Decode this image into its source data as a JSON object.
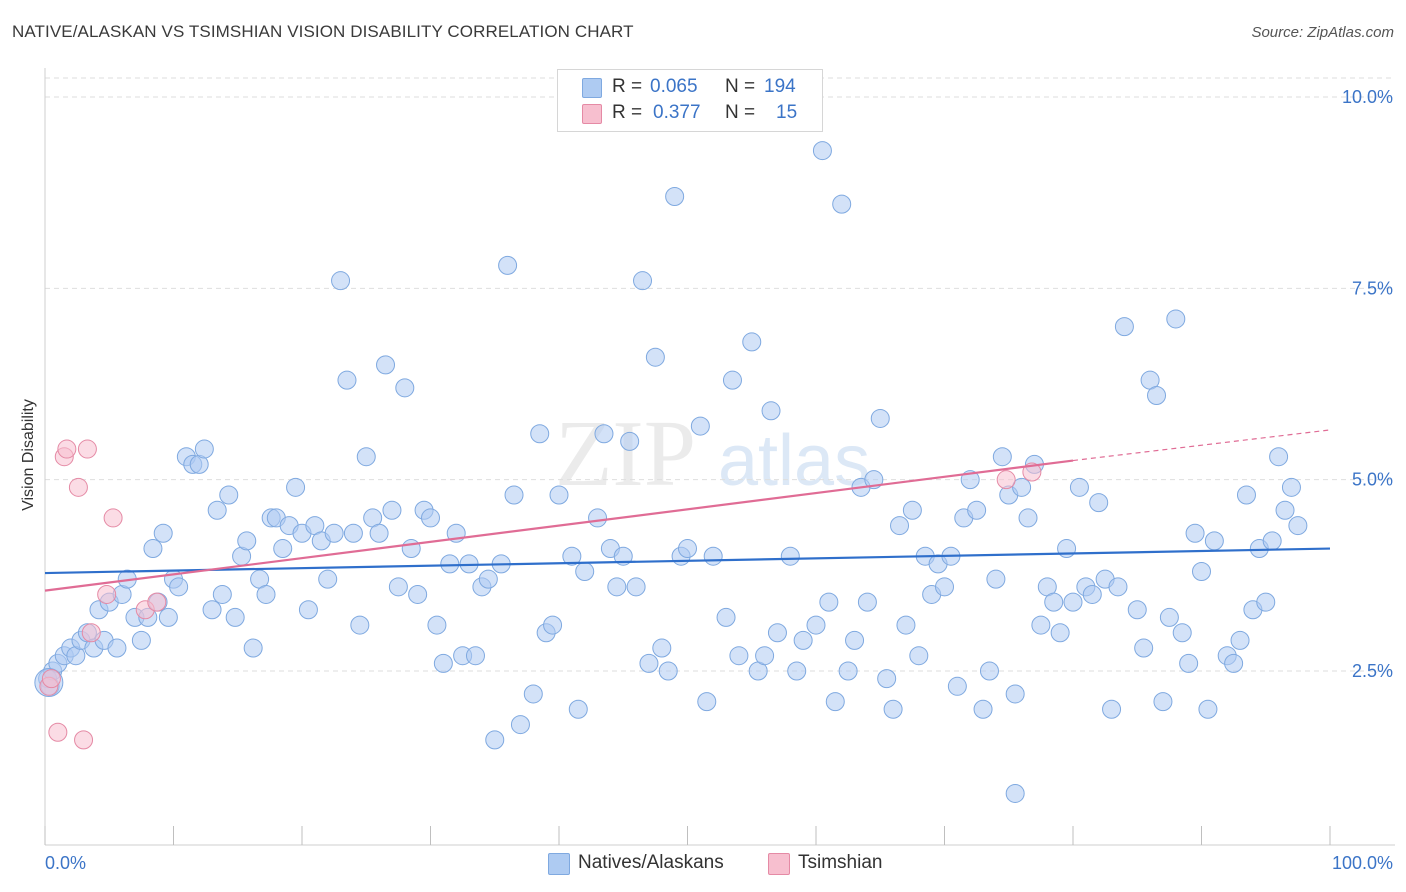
{
  "title": "NATIVE/ALASKAN VS TSIMSHIAN VISION DISABILITY CORRELATION CHART",
  "source": "Source: ZipAtlas.com",
  "watermark": {
    "zip": "ZIP",
    "atlas": "atlas"
  },
  "legend": {
    "r_label": "R =",
    "n_label": "N =",
    "rows": [
      {
        "r": "0.065",
        "n": "194",
        "color": "#aecbf2",
        "border": "#7fa9e0"
      },
      {
        "r": "0.377",
        "n": "15",
        "color": "#f7bfcf",
        "border": "#e58aa5"
      }
    ]
  },
  "chart_data": {
    "type": "scatter",
    "title": "NATIVE/ALASKAN VS TSIMSHIAN VISION DISABILITY CORRELATION CHART",
    "xlabel": "",
    "ylabel": "Vision Disability",
    "xlim": [
      0,
      100
    ],
    "ylim": [
      0,
      10.5
    ],
    "x_tick_labels": [
      "0.0%",
      "100.0%"
    ],
    "y_ticks": [
      2.5,
      5.0,
      7.5,
      10.0
    ],
    "y_tick_labels": [
      "2.5%",
      "5.0%",
      "7.5%",
      "10.0%"
    ],
    "grid": true,
    "legend_position": "top-center",
    "series": [
      {
        "name": "Natives/Alaskans",
        "color": "#aecbf2",
        "edge": "#7fa9e0",
        "trend_color": "#2f6fcb",
        "trend": [
          [
            0,
            3.78
          ],
          [
            100,
            4.1
          ]
        ],
        "points": [
          [
            0.2,
            2.4
          ],
          [
            0.4,
            2.3
          ],
          [
            0.6,
            2.5
          ],
          [
            1.0,
            2.6
          ],
          [
            1.5,
            2.7
          ],
          [
            2.0,
            2.8
          ],
          [
            2.4,
            2.7
          ],
          [
            2.8,
            2.9
          ],
          [
            3.3,
            3.0
          ],
          [
            3.8,
            2.8
          ],
          [
            4.2,
            3.3
          ],
          [
            4.6,
            2.9
          ],
          [
            5.0,
            3.4
          ],
          [
            5.6,
            2.8
          ],
          [
            6.0,
            3.5
          ],
          [
            6.4,
            3.7
          ],
          [
            7.0,
            3.2
          ],
          [
            7.5,
            2.9
          ],
          [
            8.0,
            3.2
          ],
          [
            8.4,
            4.1
          ],
          [
            8.8,
            3.4
          ],
          [
            9.2,
            4.3
          ],
          [
            9.6,
            3.2
          ],
          [
            10.0,
            3.7
          ],
          [
            10.4,
            3.6
          ],
          [
            11.0,
            5.3
          ],
          [
            11.5,
            5.2
          ],
          [
            12.0,
            5.2
          ],
          [
            12.4,
            5.4
          ],
          [
            13.0,
            3.3
          ],
          [
            13.4,
            4.6
          ],
          [
            13.8,
            3.5
          ],
          [
            14.3,
            4.8
          ],
          [
            14.8,
            3.2
          ],
          [
            15.3,
            4.0
          ],
          [
            15.7,
            4.2
          ],
          [
            16.2,
            2.8
          ],
          [
            16.7,
            3.7
          ],
          [
            17.2,
            3.5
          ],
          [
            17.6,
            4.5
          ],
          [
            18.0,
            4.5
          ],
          [
            18.5,
            4.1
          ],
          [
            19.0,
            4.4
          ],
          [
            19.5,
            4.9
          ],
          [
            20.0,
            4.3
          ],
          [
            20.5,
            3.3
          ],
          [
            21.0,
            4.4
          ],
          [
            21.5,
            4.2
          ],
          [
            22.0,
            3.7
          ],
          [
            22.5,
            4.3
          ],
          [
            23.0,
            7.6
          ],
          [
            23.5,
            6.3
          ],
          [
            24.0,
            4.3
          ],
          [
            24.5,
            3.1
          ],
          [
            25.0,
            5.3
          ],
          [
            25.5,
            4.5
          ],
          [
            26.0,
            4.3
          ],
          [
            26.5,
            6.5
          ],
          [
            27.0,
            4.6
          ],
          [
            27.5,
            3.6
          ],
          [
            28.0,
            6.2
          ],
          [
            28.5,
            4.1
          ],
          [
            29.0,
            3.5
          ],
          [
            29.5,
            4.6
          ],
          [
            30.0,
            4.5
          ],
          [
            30.5,
            3.1
          ],
          [
            31.0,
            2.6
          ],
          [
            31.5,
            3.9
          ],
          [
            32.0,
            4.3
          ],
          [
            32.5,
            2.7
          ],
          [
            33.0,
            3.9
          ],
          [
            33.5,
            2.7
          ],
          [
            34.0,
            3.6
          ],
          [
            34.5,
            3.7
          ],
          [
            35.0,
            1.6
          ],
          [
            35.5,
            3.9
          ],
          [
            36.0,
            7.8
          ],
          [
            36.5,
            4.8
          ],
          [
            37.0,
            1.8
          ],
          [
            38.0,
            2.2
          ],
          [
            38.5,
            5.6
          ],
          [
            39.0,
            3.0
          ],
          [
            39.5,
            3.1
          ],
          [
            40.0,
            4.8
          ],
          [
            41.0,
            4.0
          ],
          [
            41.5,
            2.0
          ],
          [
            42.0,
            3.8
          ],
          [
            43.0,
            4.5
          ],
          [
            43.5,
            5.6
          ],
          [
            44.0,
            4.1
          ],
          [
            44.5,
            3.6
          ],
          [
            45.0,
            4.0
          ],
          [
            45.5,
            5.5
          ],
          [
            46.0,
            3.6
          ],
          [
            46.5,
            7.6
          ],
          [
            47.0,
            2.6
          ],
          [
            47.5,
            6.6
          ],
          [
            48.0,
            2.8
          ],
          [
            48.5,
            2.5
          ],
          [
            49.0,
            8.7
          ],
          [
            49.5,
            4.0
          ],
          [
            50.0,
            4.1
          ],
          [
            51.0,
            5.7
          ],
          [
            51.5,
            2.1
          ],
          [
            52.0,
            4.0
          ],
          [
            53.0,
            3.2
          ],
          [
            53.5,
            6.3
          ],
          [
            54.0,
            2.7
          ],
          [
            55.0,
            6.8
          ],
          [
            55.5,
            2.5
          ],
          [
            56.0,
            2.7
          ],
          [
            56.5,
            5.9
          ],
          [
            57.0,
            3.0
          ],
          [
            58.0,
            4.0
          ],
          [
            58.5,
            2.5
          ],
          [
            59.0,
            2.9
          ],
          [
            60.0,
            3.1
          ],
          [
            60.5,
            9.3
          ],
          [
            61.0,
            3.4
          ],
          [
            61.5,
            2.1
          ],
          [
            62.0,
            8.6
          ],
          [
            62.5,
            2.5
          ],
          [
            63.0,
            2.9
          ],
          [
            63.5,
            4.9
          ],
          [
            64.0,
            3.4
          ],
          [
            64.5,
            5.0
          ],
          [
            65.0,
            5.8
          ],
          [
            65.5,
            2.4
          ],
          [
            66.0,
            2.0
          ],
          [
            66.5,
            4.4
          ],
          [
            67.0,
            3.1
          ],
          [
            67.5,
            4.6
          ],
          [
            68.0,
            2.7
          ],
          [
            68.5,
            4.0
          ],
          [
            69.0,
            3.5
          ],
          [
            69.5,
            3.9
          ],
          [
            70.0,
            3.6
          ],
          [
            70.5,
            4.0
          ],
          [
            71.0,
            2.3
          ],
          [
            71.5,
            4.5
          ],
          [
            72.0,
            5.0
          ],
          [
            72.5,
            4.6
          ],
          [
            73.0,
            2.0
          ],
          [
            73.5,
            2.5
          ],
          [
            74.0,
            3.7
          ],
          [
            74.5,
            5.3
          ],
          [
            75.0,
            4.8
          ],
          [
            75.5,
            2.2
          ],
          [
            76.0,
            4.9
          ],
          [
            76.5,
            4.5
          ],
          [
            77.0,
            5.2
          ],
          [
            77.5,
            3.1
          ],
          [
            78.0,
            3.6
          ],
          [
            78.5,
            3.4
          ],
          [
            79.0,
            3.0
          ],
          [
            79.5,
            4.1
          ],
          [
            80.0,
            3.4
          ],
          [
            80.5,
            4.9
          ],
          [
            81.0,
            3.6
          ],
          [
            81.5,
            3.5
          ],
          [
            82.0,
            4.7
          ],
          [
            82.5,
            3.7
          ],
          [
            83.0,
            2.0
          ],
          [
            83.5,
            3.6
          ],
          [
            84.0,
            7.0
          ],
          [
            85.0,
            3.3
          ],
          [
            85.5,
            2.8
          ],
          [
            86.0,
            6.3
          ],
          [
            86.5,
            6.1
          ],
          [
            87.0,
            2.1
          ],
          [
            87.5,
            3.2
          ],
          [
            88.0,
            7.1
          ],
          [
            88.5,
            3.0
          ],
          [
            89.0,
            2.6
          ],
          [
            89.5,
            4.3
          ],
          [
            90.0,
            3.8
          ],
          [
            90.5,
            2.0
          ],
          [
            91.0,
            4.2
          ],
          [
            92.0,
            2.7
          ],
          [
            92.5,
            2.6
          ],
          [
            93.0,
            2.9
          ],
          [
            93.5,
            4.8
          ],
          [
            94.0,
            3.3
          ],
          [
            94.5,
            4.1
          ],
          [
            95.0,
            3.4
          ],
          [
            95.5,
            4.2
          ],
          [
            96.0,
            5.3
          ],
          [
            96.5,
            4.6
          ],
          [
            97.0,
            4.9
          ],
          [
            97.5,
            4.4
          ],
          [
            75.5,
            0.9
          ]
        ]
      },
      {
        "name": "Tsimshian",
        "color": "#f7bfcf",
        "edge": "#e58aa5",
        "trend_color": "#e06c95",
        "trend": [
          [
            0,
            3.55
          ],
          [
            80,
            5.25
          ]
        ],
        "trend_extension": [
          [
            80,
            5.25
          ],
          [
            100,
            5.65
          ]
        ],
        "points": [
          [
            0.3,
            2.3
          ],
          [
            0.5,
            2.4
          ],
          [
            1.0,
            1.7
          ],
          [
            1.5,
            5.3
          ],
          [
            1.7,
            5.4
          ],
          [
            2.6,
            4.9
          ],
          [
            3.0,
            1.6
          ],
          [
            3.3,
            5.4
          ],
          [
            3.6,
            3.0
          ],
          [
            4.8,
            3.5
          ],
          [
            5.3,
            4.5
          ],
          [
            7.8,
            3.3
          ],
          [
            8.7,
            3.4
          ],
          [
            74.8,
            5.0
          ],
          [
            76.8,
            5.1
          ]
        ]
      }
    ]
  }
}
